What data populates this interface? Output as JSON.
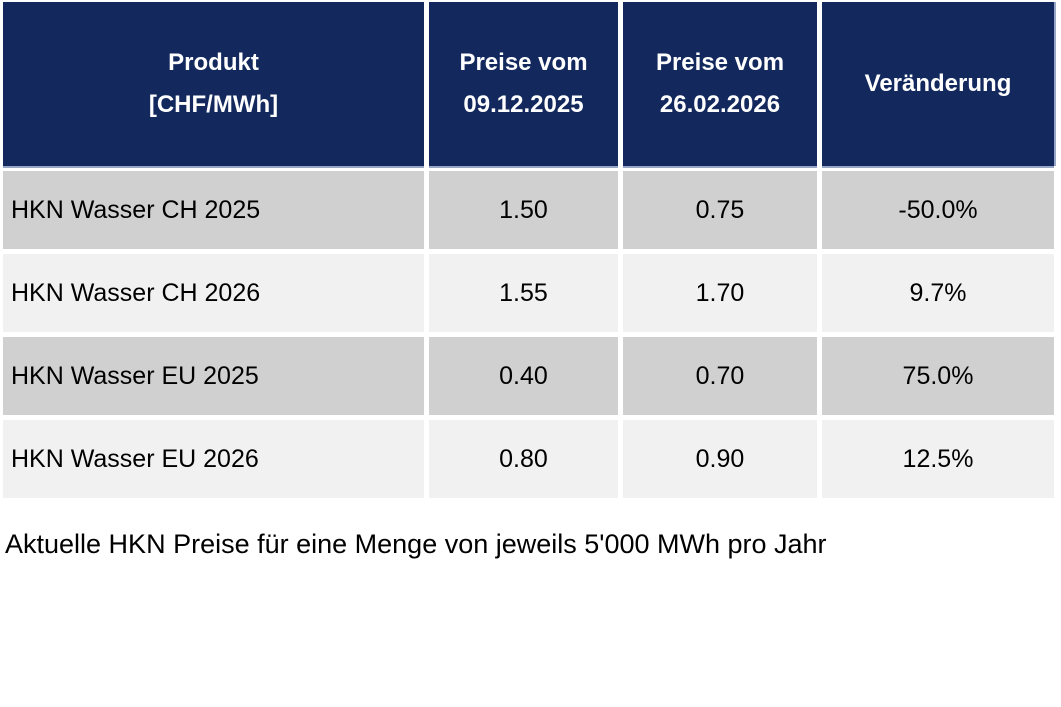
{
  "colors": {
    "header_bg": "#13295E",
    "header_text": "#FFFFFF",
    "row_odd_bg": "#D1D0D0",
    "row_even_bg": "#F2F1F1",
    "accent_edge": "#97A5C7",
    "body_text": "#000000",
    "page_bg": "#FFFFFF"
  },
  "table": {
    "headers": [
      {
        "label": "Produkt\n[CHF/MWh]"
      },
      {
        "label": "Preise vom\n09.12.2025"
      },
      {
        "label": "Preise vom\n26.02.2026"
      },
      {
        "label": "Veränderung"
      }
    ],
    "rows": [
      {
        "product": "HKN Wasser CH 2025",
        "price_old": "1.50",
        "price_new": "0.75",
        "change": "-50.0%"
      },
      {
        "product": "HKN Wasser CH 2026",
        "price_old": "1.55",
        "price_new": "1.70",
        "change": "9.7%"
      },
      {
        "product": "HKN Wasser EU 2025",
        "price_old": "0.40",
        "price_new": "0.70",
        "change": "75.0%"
      },
      {
        "product": "HKN Wasser EU 2026",
        "price_old": "0.80",
        "price_new": "0.90",
        "change": "12.5%"
      }
    ]
  },
  "caption": "Aktuelle HKN Preise für eine Menge von jeweils 5'000 MWh pro Jahr",
  "chart_data": {
    "type": "table",
    "title": "",
    "columns": [
      "Produkt [CHF/MWh]",
      "Preise vom 09.12.2025",
      "Preise vom 26.02.2026",
      "Veränderung"
    ],
    "rows": [
      [
        "HKN Wasser CH 2025",
        1.5,
        0.75,
        "-50.0%"
      ],
      [
        "HKN Wasser CH 2026",
        1.55,
        1.7,
        "9.7%"
      ],
      [
        "HKN Wasser EU 2025",
        0.4,
        0.7,
        "75.0%"
      ],
      [
        "HKN Wasser EU 2026",
        0.8,
        0.9,
        "12.5%"
      ]
    ],
    "caption": "Aktuelle HKN Preise für eine Menge von jeweils 5'000 MWh pro Jahr"
  }
}
